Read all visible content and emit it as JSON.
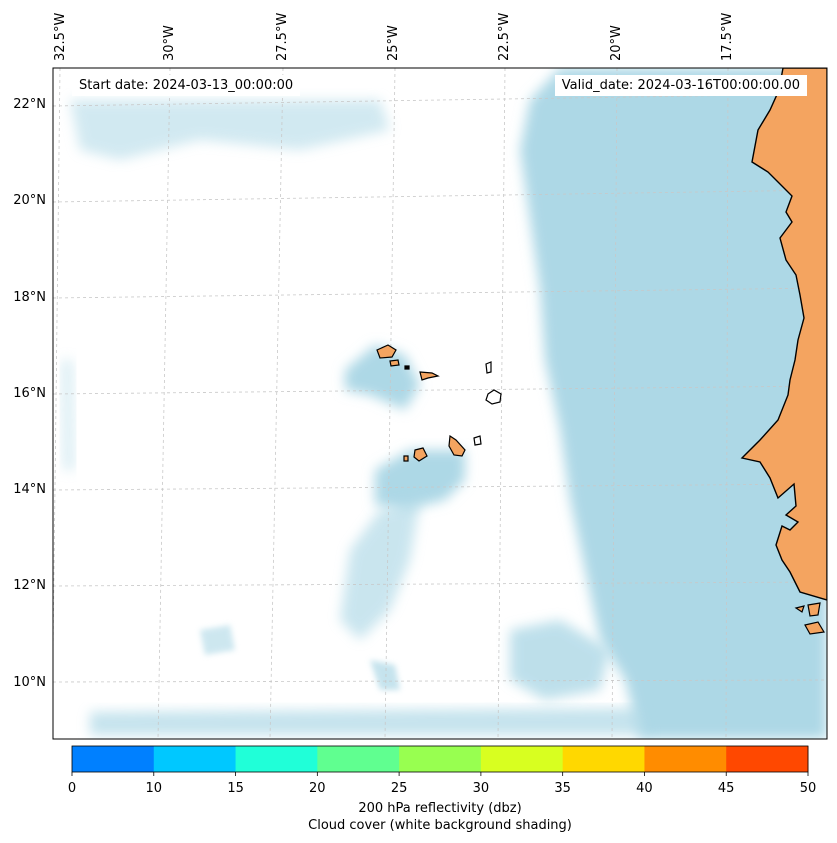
{
  "map": {
    "start_date": "Start date: 2024-03-13_00:00:00",
    "valid_date": "Valid_date: 2024-03-16T00:00:00.00",
    "lon_labels": [
      "32.5°W",
      "30°W",
      "27.5°W",
      "25°W",
      "22.5°W",
      "20°W",
      "17.5°W"
    ],
    "lat_labels": [
      "22°N",
      "20°N",
      "18°N",
      "16°N",
      "14°N",
      "12°N",
      "10°N"
    ],
    "colors": {
      "ocean": "#ffffff",
      "cloud": "#add8e6",
      "land": "#f4a460",
      "coast": "#000000",
      "grid": "#c8c8c8"
    }
  },
  "colorbar": {
    "ticks": [
      "0",
      "10",
      "15",
      "20",
      "25",
      "30",
      "35",
      "40",
      "45",
      "50"
    ],
    "colors": [
      "#0080ff",
      "#00c8ff",
      "#20ffd8",
      "#60ff90",
      "#98ff50",
      "#d8ff20",
      "#ffd800",
      "#ff8c00",
      "#ff4800"
    ],
    "label_line1": "200 hPa reflectivity (dbz)",
    "label_line2": "Cloud cover (white background shading)"
  }
}
